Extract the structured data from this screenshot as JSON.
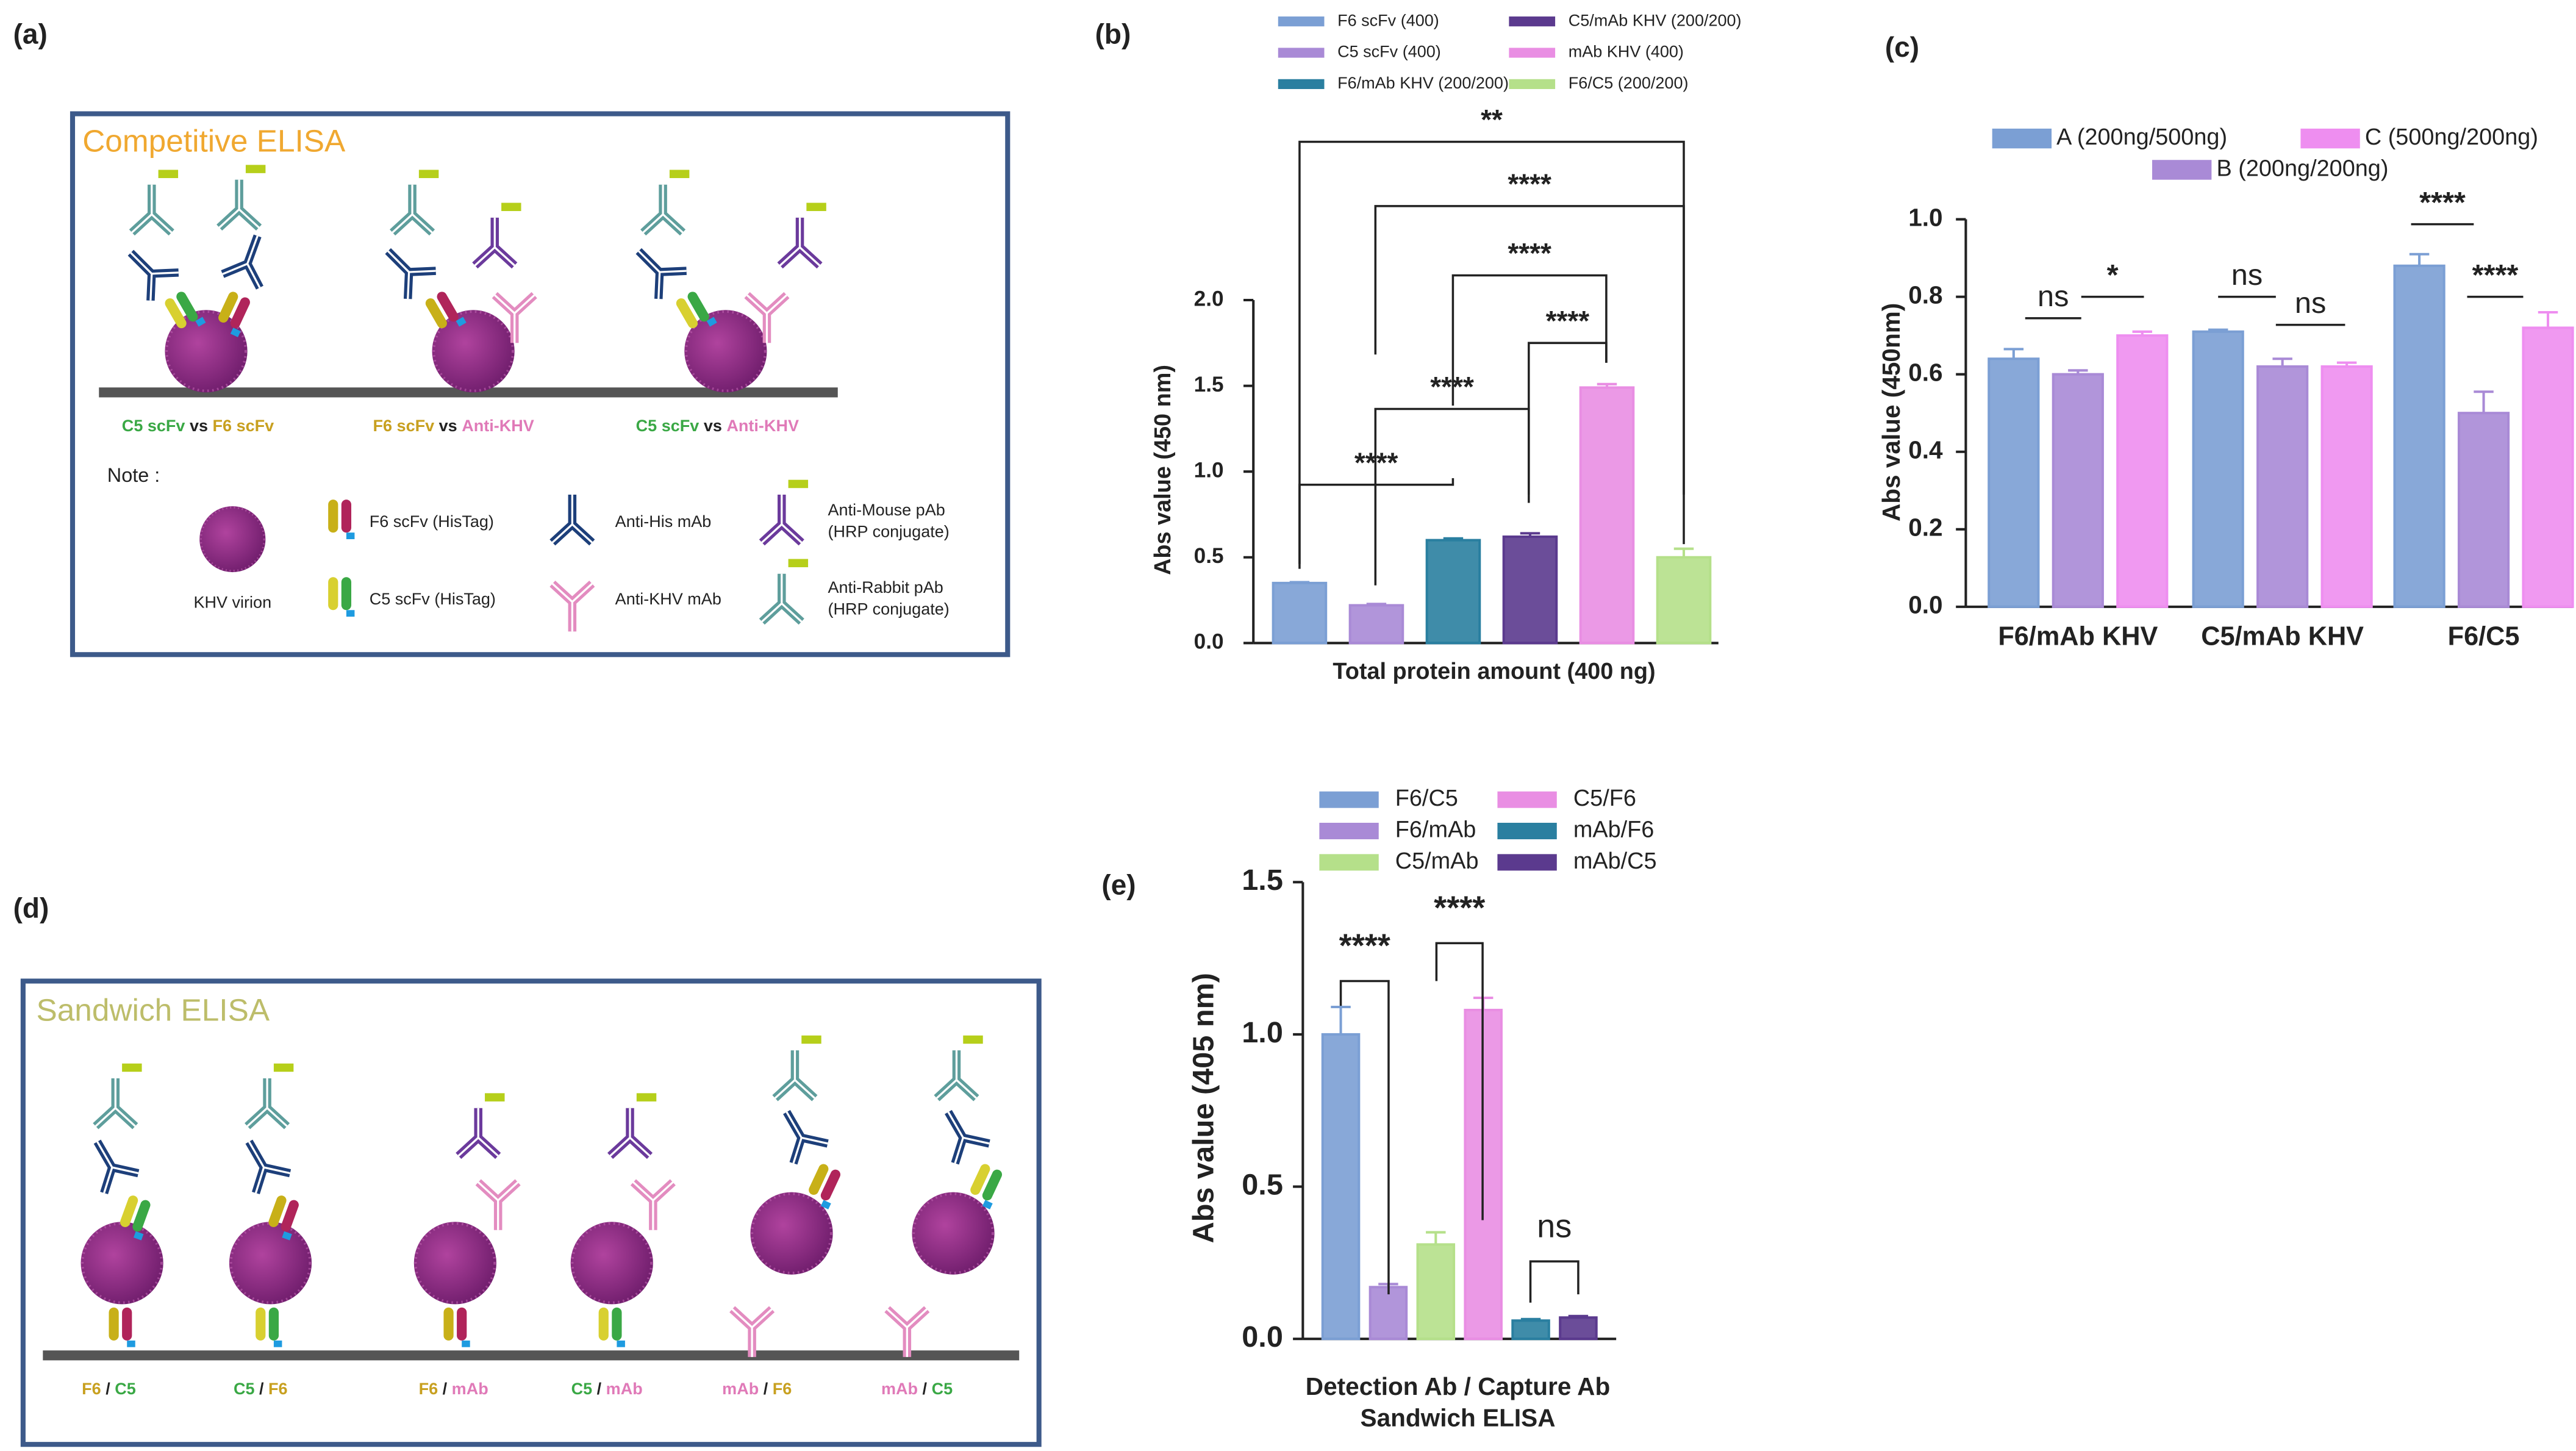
{
  "panel_a": {
    "label": "(a)",
    "title": "Competitive ELISA",
    "captions": [
      [
        "C5 scFv",
        "vs",
        "F6 scFv"
      ],
      [
        "F6 scFv",
        "vs",
        "Anti-KHV"
      ],
      [
        "C5 scFv",
        "vs",
        "Anti-KHV"
      ]
    ],
    "note": "Note :",
    "legend": [
      "KHV virion",
      "F6 scFv (HisTag)",
      "C5 scFv (HisTag)",
      "Anti-His mAb",
      "Anti-KHV mAb",
      [
        "Anti-Mouse pAb",
        "(HRP conjugate)"
      ],
      [
        "Anti-Rabbit pAb",
        "(HRP conjugate)"
      ]
    ]
  },
  "panel_d": {
    "label": "(d)",
    "title": "Sandwich ELISA",
    "captions": [
      [
        "F6",
        "/",
        "C5"
      ],
      [
        "C5",
        "/",
        "F6"
      ],
      [
        "F6",
        "/",
        "mAb"
      ],
      [
        "C5",
        "/",
        "mAb"
      ],
      [
        "mAb",
        "/",
        "F6"
      ],
      [
        "mAb",
        "/",
        "C5"
      ]
    ]
  },
  "chart_data": [
    {
      "type": "bar",
      "panel_label": "(b)",
      "ylabel": "Abs value (450 nm)",
      "xlabel": "Total protein amount (400 ng)",
      "ylim": [
        0,
        2
      ],
      "yticks": [
        {
          "value": 0,
          "label": "0.0"
        },
        0.5,
        {
          "value": 1,
          "label": "1.0"
        },
        1.5,
        {
          "value": 2,
          "label": "2.0"
        }
      ],
      "series": [
        {
          "name": "F6 scFv (400)",
          "color": "#7b9fd4",
          "values": [
            0.35
          ],
          "errors": [
            0.005
          ]
        },
        {
          "name": "C5 scFv (400)",
          "color": "#a98ad6",
          "values": [
            0.22
          ],
          "errors": [
            0.008
          ]
        },
        {
          "name": "F6/mAb KHV (200/200)",
          "color": "#2a7fa0",
          "values": [
            0.6
          ],
          "errors": [
            0.01
          ]
        },
        {
          "name": "C5/mAb KHV (200/200)",
          "color": "#5b3a8e",
          "values": [
            0.62
          ],
          "errors": [
            0.02
          ]
        },
        {
          "name": "mAb KHV (400)",
          "color": "#e98ee3",
          "values": [
            1.49
          ],
          "errors": [
            0.02
          ]
        },
        {
          "name": "F6/C5 (200/200)",
          "color": "#b5e08a",
          "values": [
            0.5
          ],
          "errors": [
            0.05
          ]
        }
      ],
      "annotations": [
        "**",
        "****",
        "****",
        "****",
        "****",
        "****"
      ]
    },
    {
      "type": "bar",
      "panel_label": "(c)",
      "ylabel": "Abs value (450nm)",
      "categories": [
        "F6/mAb KHV",
        "C5/mAb KHV",
        "F6/C5"
      ],
      "ylim": [
        0,
        1
      ],
      "yticks": [
        {
          "value": 0,
          "label": "0.0"
        },
        0.2,
        0.4,
        0.6,
        0.8,
        {
          "value": 1,
          "label": "1.0"
        }
      ],
      "series": [
        {
          "name": "A (200ng/500ng)",
          "color": "#7b9fd4",
          "values": [
            0.64,
            0.71,
            0.88
          ],
          "errors": [
            0.025,
            0.005,
            0.03
          ]
        },
        {
          "name": "B (200ng/200ng)",
          "color": "#a98ad6",
          "values": [
            0.6,
            0.62,
            0.5
          ],
          "errors": [
            0.01,
            0.02,
            0.055
          ]
        },
        {
          "name": "C (500ng/200ng)",
          "color": "#ee8ef0",
          "values": [
            0.7,
            0.62,
            0.72
          ],
          "errors": [
            0.01,
            0.01,
            0.04
          ]
        }
      ],
      "annotations": [
        "ns",
        "*",
        "ns",
        "ns",
        "****",
        "****"
      ]
    },
    {
      "type": "bar",
      "panel_label": "(e)",
      "ylabel": "Abs value (405 nm)",
      "xlabel": [
        "Detection Ab  / Capture Ab",
        "Sandwich ELISA"
      ],
      "ylim": [
        0,
        1.5
      ],
      "yticks": [
        {
          "value": 0,
          "label": "0.0"
        },
        0.5,
        {
          "value": 1,
          "label": "1.0"
        },
        1.5
      ],
      "series": [
        {
          "name": "F6/C5",
          "color": "#7b9fd4",
          "values": [
            1.0
          ],
          "errors": [
            0.09
          ]
        },
        {
          "name": "F6/mAb",
          "color": "#a98ad6",
          "values": [
            0.17
          ],
          "errors": [
            0.01
          ]
        },
        {
          "name": "C5/mAb",
          "color": "#b5e08a",
          "values": [
            0.31
          ],
          "errors": [
            0.04
          ]
        },
        {
          "name": "C5/F6",
          "color": "#e98ee3",
          "values": [
            1.08
          ],
          "errors": [
            0.04
          ]
        },
        {
          "name": "mAb/F6",
          "color": "#2a7fa0",
          "values": [
            0.06
          ],
          "errors": [
            0.005
          ]
        },
        {
          "name": "mAb/C5",
          "color": "#5b3a8e",
          "values": [
            0.07
          ],
          "errors": [
            0.005
          ]
        }
      ],
      "annotations": [
        "****",
        "****",
        "ns"
      ]
    }
  ]
}
